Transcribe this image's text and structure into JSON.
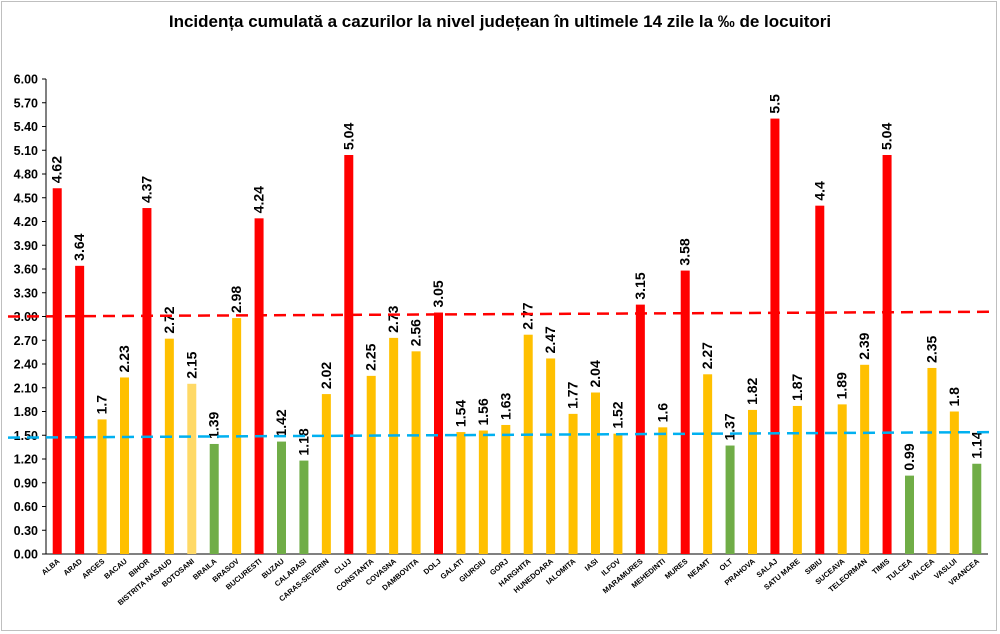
{
  "chart_data": {
    "type": "bar",
    "title": "Incidența cumulată a cazurilor la nivel județean în ultimele 14 zile la ‰ de locuitori",
    "ylim": [
      0,
      6
    ],
    "yticks": [
      "0.00",
      "0.30",
      "0.60",
      "0.90",
      "1.20",
      "1.50",
      "1.80",
      "2.10",
      "2.40",
      "2.70",
      "3.00",
      "3.30",
      "3.60",
      "3.90",
      "4.20",
      "4.50",
      "4.80",
      "5.10",
      "5.40",
      "5.70",
      "6.00"
    ],
    "grid": false,
    "categories": [
      "ALBA",
      "ARAD",
      "ARGES",
      "BACAU",
      "BIHOR",
      "BISTRITA NASAUD",
      "BOTOSANI",
      "BRAILA",
      "BRASOV",
      "BUCURESTI",
      "BUZAU",
      "CALARASI",
      "CARAS-SEVERIN",
      "CLUJ",
      "CONSTANTA",
      "COVASNA",
      "DAMBOVITA",
      "DOLJ",
      "GALATI",
      "GIURGIU",
      "GORJ",
      "HARGHITA",
      "HUNEDOARA",
      "IALOMITA",
      "IASI",
      "ILFOV",
      "MARAMURES",
      "MEHEDINTI",
      "MURES",
      "NEAMT",
      "OLT",
      "PRAHOVA",
      "SALAJ",
      "SATU MARE",
      "SIBIU",
      "SUCEAVA",
      "TELEORMAN",
      "TIMIS",
      "TULCEA",
      "VALCEA",
      "VASLUI",
      "VRANCEA"
    ],
    "values": [
      4.62,
      3.64,
      1.7,
      2.23,
      4.37,
      2.72,
      2.15,
      1.39,
      2.98,
      4.24,
      1.42,
      1.18,
      2.02,
      5.04,
      2.25,
      2.73,
      2.56,
      3.05,
      1.54,
      1.56,
      1.63,
      2.77,
      2.47,
      1.77,
      2.04,
      1.52,
      3.15,
      1.6,
      3.58,
      2.27,
      1.37,
      1.82,
      5.5,
      1.87,
      4.4,
      1.89,
      2.39,
      5.04,
      0.99,
      2.35,
      1.8,
      1.14
    ],
    "value_labels": [
      "4.62",
      "3.64",
      "1.7",
      "2.23",
      "4.37",
      "2.72",
      "2.15",
      "1.39",
      "2.98",
      "4.24",
      "1.42",
      "1.18",
      "2.02",
      "5.04",
      "2.25",
      "2.73",
      "2.56",
      "3.05",
      "1.54",
      "1.56",
      "1.63",
      "2.77",
      "2.47",
      "1.77",
      "2.04",
      "1.52",
      "3.15",
      "1.6",
      "3.58",
      "2.27",
      "1.37",
      "1.82",
      "5.5",
      "1.87",
      "4.4",
      "1.89",
      "2.39",
      "5.04",
      "0.99",
      "2.35",
      "1.8",
      "1.14"
    ],
    "bar_colors": [
      "#ff0000",
      "#ff0000",
      "#ffc000",
      "#ffc000",
      "#ff0000",
      "#ffc000",
      "#ffd966",
      "#70ad47",
      "#ffc000",
      "#ff0000",
      "#70ad47",
      "#70ad47",
      "#ffc000",
      "#ff0000",
      "#ffc000",
      "#ffc000",
      "#ffc000",
      "#ff0000",
      "#ffc000",
      "#ffc000",
      "#ffc000",
      "#ffc000",
      "#ffc000",
      "#ffc000",
      "#ffc000",
      "#ffc000",
      "#ff0000",
      "#ffc000",
      "#ff0000",
      "#ffc000",
      "#70ad47",
      "#ffc000",
      "#ff0000",
      "#ffc000",
      "#ff0000",
      "#ffc000",
      "#ffc000",
      "#ff0000",
      "#70ad47",
      "#ffc000",
      "#ffc000",
      "#70ad47"
    ],
    "thresholds": [
      {
        "from": 3.0,
        "to": 3.06,
        "color": "#ff0000",
        "style": "dashed"
      },
      {
        "from": 1.47,
        "to": 1.54,
        "color": "#00b0f0",
        "style": "dashed"
      }
    ]
  }
}
